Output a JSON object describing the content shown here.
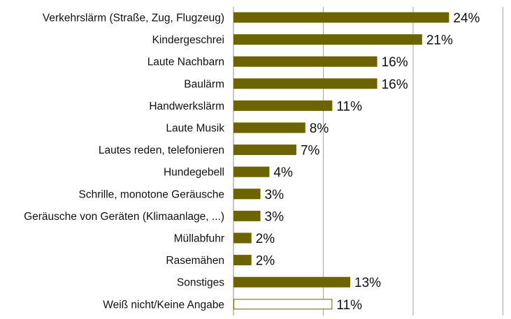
{
  "chart_data": {
    "type": "bar",
    "orientation": "horizontal",
    "title": "",
    "xlabel": "",
    "ylabel": "",
    "xlim": [
      0,
      30
    ],
    "grid": true,
    "legend": "none",
    "value_suffix": "%",
    "categories": [
      "Verkehrslärm (Straße, Zug, Flugzeug)",
      "Kindergeschrei",
      "Laute Nachbarn",
      "Baulärm",
      "Handwerkslärm",
      "Laute Musik",
      "Lautes reden, telefonieren",
      "Hundegebell",
      "Schrille, monotone Geräusche",
      "Geräusche von Geräten (Klimaanlage, ...)",
      "Müllabfuhr",
      "Rasemähen",
      "Sonstiges",
      "Weiß nicht/Keine Angabe"
    ],
    "values": [
      24,
      21,
      16,
      16,
      11,
      8,
      7,
      4,
      3,
      3,
      2,
      2,
      13,
      11
    ],
    "value_labels": [
      "24%",
      "21%",
      "16%",
      "16%",
      "11%",
      "8%",
      "7%",
      "4%",
      "3%",
      "3%",
      "2%",
      "2%",
      "13%",
      "11%"
    ],
    "bar_styles": [
      "filled",
      "filled",
      "filled",
      "filled",
      "filled",
      "filled",
      "filled",
      "filled",
      "filled",
      "filled",
      "filled",
      "filled",
      "filled",
      "outline"
    ],
    "colors": {
      "bar": "#6b6400",
      "outline": "#6b6400",
      "grid": "#a6a6a6",
      "axis": "#8c8c8c"
    }
  }
}
